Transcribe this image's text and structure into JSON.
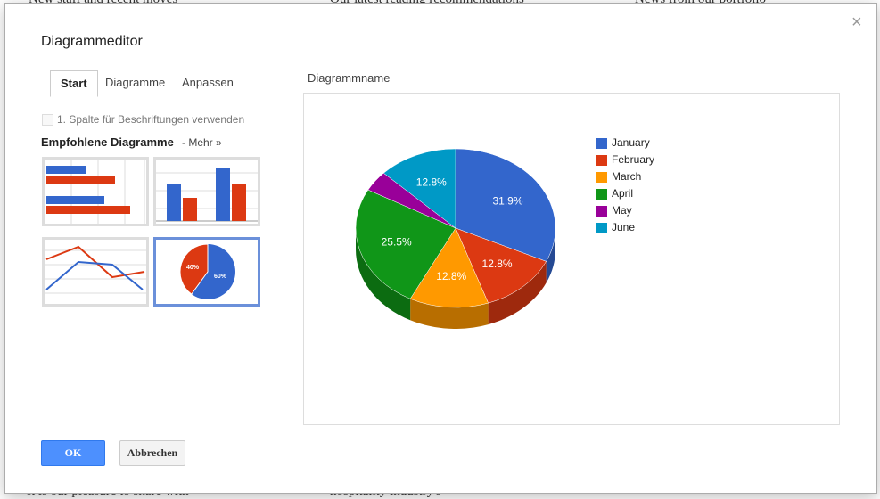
{
  "background": {
    "headlines": [
      "New staff and recent moves",
      "Our latest reading recommendations",
      "News from our portfolio"
    ],
    "snippets": [
      "It is our pleasure to share with",
      "hospitality industry's"
    ]
  },
  "dialog": {
    "title": "Diagrammeditor",
    "close": "×",
    "tabs": [
      "Start",
      "Diagramme",
      "Anpassen"
    ],
    "checkbox_label": "1. Spalte für Beschriftungen verwenden",
    "recommended_heading": "Empfohlene Diagramme",
    "more_link": "- Mehr »",
    "thumbnail_pie_labels": [
      "40%",
      "60%"
    ],
    "chart_name_label": "Diagrammname",
    "buttons": {
      "ok": "OK",
      "cancel": "Abbrechen"
    }
  },
  "chart_data": {
    "type": "pie",
    "categories": [
      "January",
      "February",
      "March",
      "April",
      "May",
      "June"
    ],
    "values": [
      31.9,
      12.8,
      12.8,
      25.5,
      4.2,
      12.8
    ],
    "value_labels": [
      "31.9%",
      "12.8%",
      "12.8%",
      "25.5%",
      null,
      "12.8%"
    ],
    "colors": [
      "#3366cc",
      "#dc3912",
      "#ff9900",
      "#109618",
      "#990099",
      "#0099c6"
    ],
    "legend": "right",
    "three_d": true
  }
}
